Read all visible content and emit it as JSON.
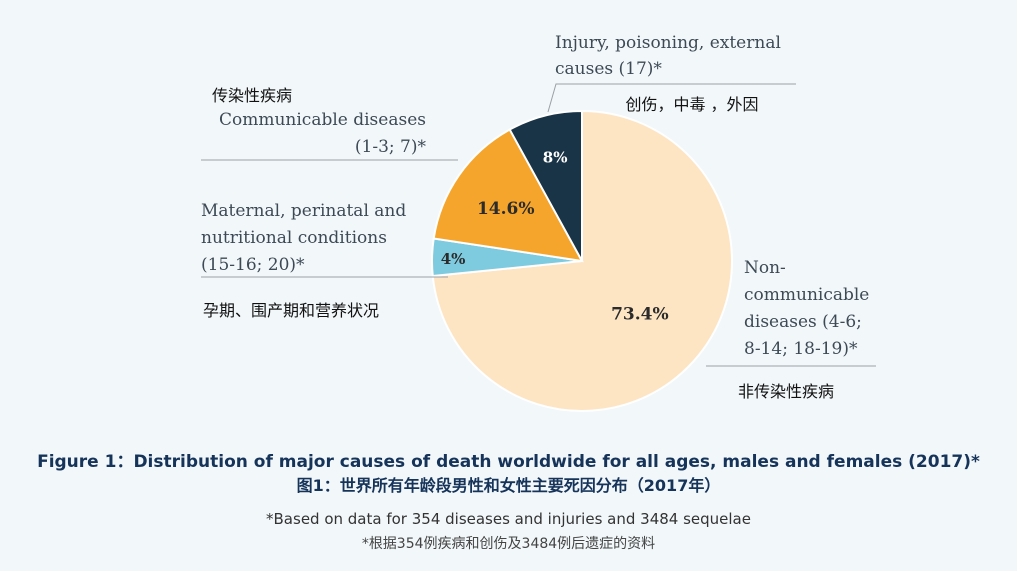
{
  "chart_data": {
    "type": "pie",
    "slices": [
      {
        "value": 73.4,
        "display": "73.4%",
        "color": "#fde5c4",
        "label_lines": [
          "Non-",
          "communicable",
          "diseases (4-6;",
          "8-14; 18-19)*"
        ],
        "label_cn": "非传染性疾病"
      },
      {
        "value": 4,
        "display": "4%",
        "color": "#7ecbe0",
        "label_lines": [
          "Maternal, perinatal and",
          "nutritional conditions",
          "(15-16; 20)*"
        ],
        "label_cn": "孕期、围产期和营养状况"
      },
      {
        "value": 14.6,
        "display": "14.6%",
        "color": "#f5a52b",
        "label_lines": [
          "Communicable diseases",
          "(1-3; 7)*"
        ],
        "label_cn": "传染性疾病"
      },
      {
        "value": 8,
        "display": "8%",
        "color": "#1a3447",
        "label_lines": [
          "Injury, poisoning, external",
          "causes (17)*"
        ],
        "label_cn": "创伤，中毒 ，外因"
      }
    ]
  },
  "caption": {
    "title_en": "Figure 1：Distribution of major causes of death worldwide for all ages, males and females (2017)*",
    "title_cn": "图1：世界所有年龄段男性和女性主要死因分布（2017年）",
    "note_en": "*Based on data for 354 diseases and injuries and 3484 sequelae",
    "note_cn": "*根据354例疾病和创伤及3484例后遗症的资料"
  }
}
